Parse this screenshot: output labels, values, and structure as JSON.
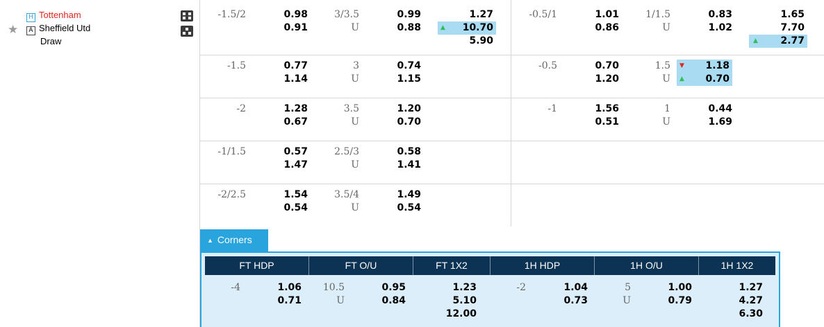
{
  "match": {
    "home_badge": "H",
    "home_team": "Tottenham",
    "away_badge": "A",
    "away_team": "Sheffield Utd",
    "draw_label": "Draw",
    "favorite_icon": "star-icon",
    "icons": [
      "lineup-icon",
      "stats-icon"
    ]
  },
  "colors": {
    "home_team": "#e0281e",
    "highlight": "#a9dcf3",
    "up_arrow": "#2fbf56",
    "down_arrow": "#e0281e",
    "corners_accent": "#2aa4dd",
    "header_bg": "#0d3354"
  },
  "rows": [
    {
      "ft_hdp": {
        "line": "-1.5/2",
        "home": "0.98",
        "away": "0.91"
      },
      "ft_ou": {
        "line": "3/3.5",
        "under_label": "U",
        "over": "0.99",
        "under": "0.88"
      },
      "ft_1x2": {
        "home": "1.27",
        "away": "10.70",
        "draw": "5.90"
      },
      "h1_hdp": {
        "line": "-0.5/1",
        "home": "1.01",
        "away": "0.86"
      },
      "h1_ou": {
        "line": "1/1.5",
        "under_label": "U",
        "over": "0.83",
        "under": "1.02"
      },
      "h1_1x2": {
        "home": "1.65",
        "away": "7.70",
        "draw": "2.77"
      }
    },
    {
      "ft_hdp": {
        "line": "-1.5",
        "home": "0.77",
        "away": "1.14"
      },
      "ft_ou": {
        "line": "3",
        "under_label": "U",
        "over": "0.74",
        "under": "1.15"
      },
      "h1_hdp": {
        "line": "-0.5",
        "home": "0.70",
        "away": "1.20"
      },
      "h1_ou": {
        "line": "1.5",
        "under_label": "U",
        "over": "1.18",
        "under": "0.70"
      }
    },
    {
      "ft_hdp": {
        "line": "-2",
        "home": "1.28",
        "away": "0.67"
      },
      "ft_ou": {
        "line": "3.5",
        "under_label": "U",
        "over": "1.20",
        "under": "0.70"
      },
      "h1_hdp": {
        "line": "-1",
        "home": "1.56",
        "away": "0.51"
      },
      "h1_ou": {
        "line": "1",
        "under_label": "U",
        "over": "0.44",
        "under": "1.69"
      }
    },
    {
      "ft_hdp": {
        "line": "-1/1.5",
        "home": "0.57",
        "away": "1.47"
      },
      "ft_ou": {
        "line": "2.5/3",
        "under_label": "U",
        "over": "0.58",
        "under": "1.41"
      }
    },
    {
      "ft_hdp": {
        "line": "-2/2.5",
        "home": "1.54",
        "away": "0.54"
      },
      "ft_ou": {
        "line": "3.5/4",
        "under_label": "U",
        "over": "1.49",
        "under": "0.54"
      }
    }
  ],
  "corners": {
    "tab_label": "Corners",
    "headers": [
      "FT HDP",
      "FT O/U",
      "FT 1X2",
      "1H HDP",
      "1H O/U",
      "1H 1X2"
    ],
    "ft_hdp": {
      "line": "-4",
      "home": "1.06",
      "away": "0.71"
    },
    "ft_ou": {
      "line": "10.5",
      "under_label": "U",
      "over": "0.95",
      "under": "0.84"
    },
    "ft_1x2": {
      "home": "1.23",
      "away": "5.10",
      "draw": "12.00"
    },
    "h1_hdp": {
      "line": "-2",
      "home": "1.04",
      "away": "0.73"
    },
    "h1_ou": {
      "line": "5",
      "under_label": "U",
      "over": "1.00",
      "under": "0.79"
    },
    "h1_1x2": {
      "home": "1.27",
      "away": "4.27",
      "draw": "6.30"
    }
  }
}
